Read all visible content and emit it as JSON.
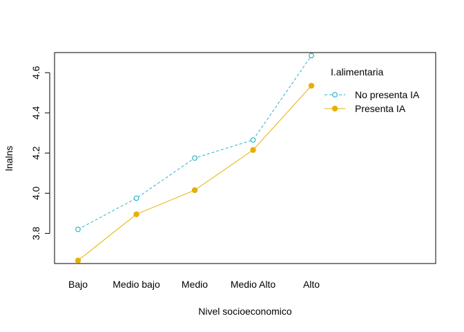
{
  "chart_data": {
    "type": "line",
    "title": "",
    "xlabel": "Nivel socioeconomico",
    "ylabel": "lnalns",
    "categories": [
      "Bajo",
      "Medio bajo",
      "Medio",
      "Medio Alto",
      "Alto"
    ],
    "ylim": [
      3.65,
      4.7
    ],
    "yticks": [
      "3.8",
      "4.0",
      "4.2",
      "4.4",
      "4.6"
    ],
    "grid": false,
    "legend": {
      "title": "I.alimentaria",
      "placement": "top-right"
    },
    "series": [
      {
        "name": "No presenta IA",
        "values": [
          3.82,
          3.975,
          4.175,
          4.265,
          4.685
        ],
        "color": "#22b5c8",
        "line_style": "dashed",
        "marker": "open-circle"
      },
      {
        "name": "Presenta IA",
        "values": [
          3.665,
          3.895,
          4.015,
          4.215,
          4.535
        ],
        "color": "#e6b000",
        "line_style": "solid",
        "marker": "filled-circle"
      }
    ]
  }
}
